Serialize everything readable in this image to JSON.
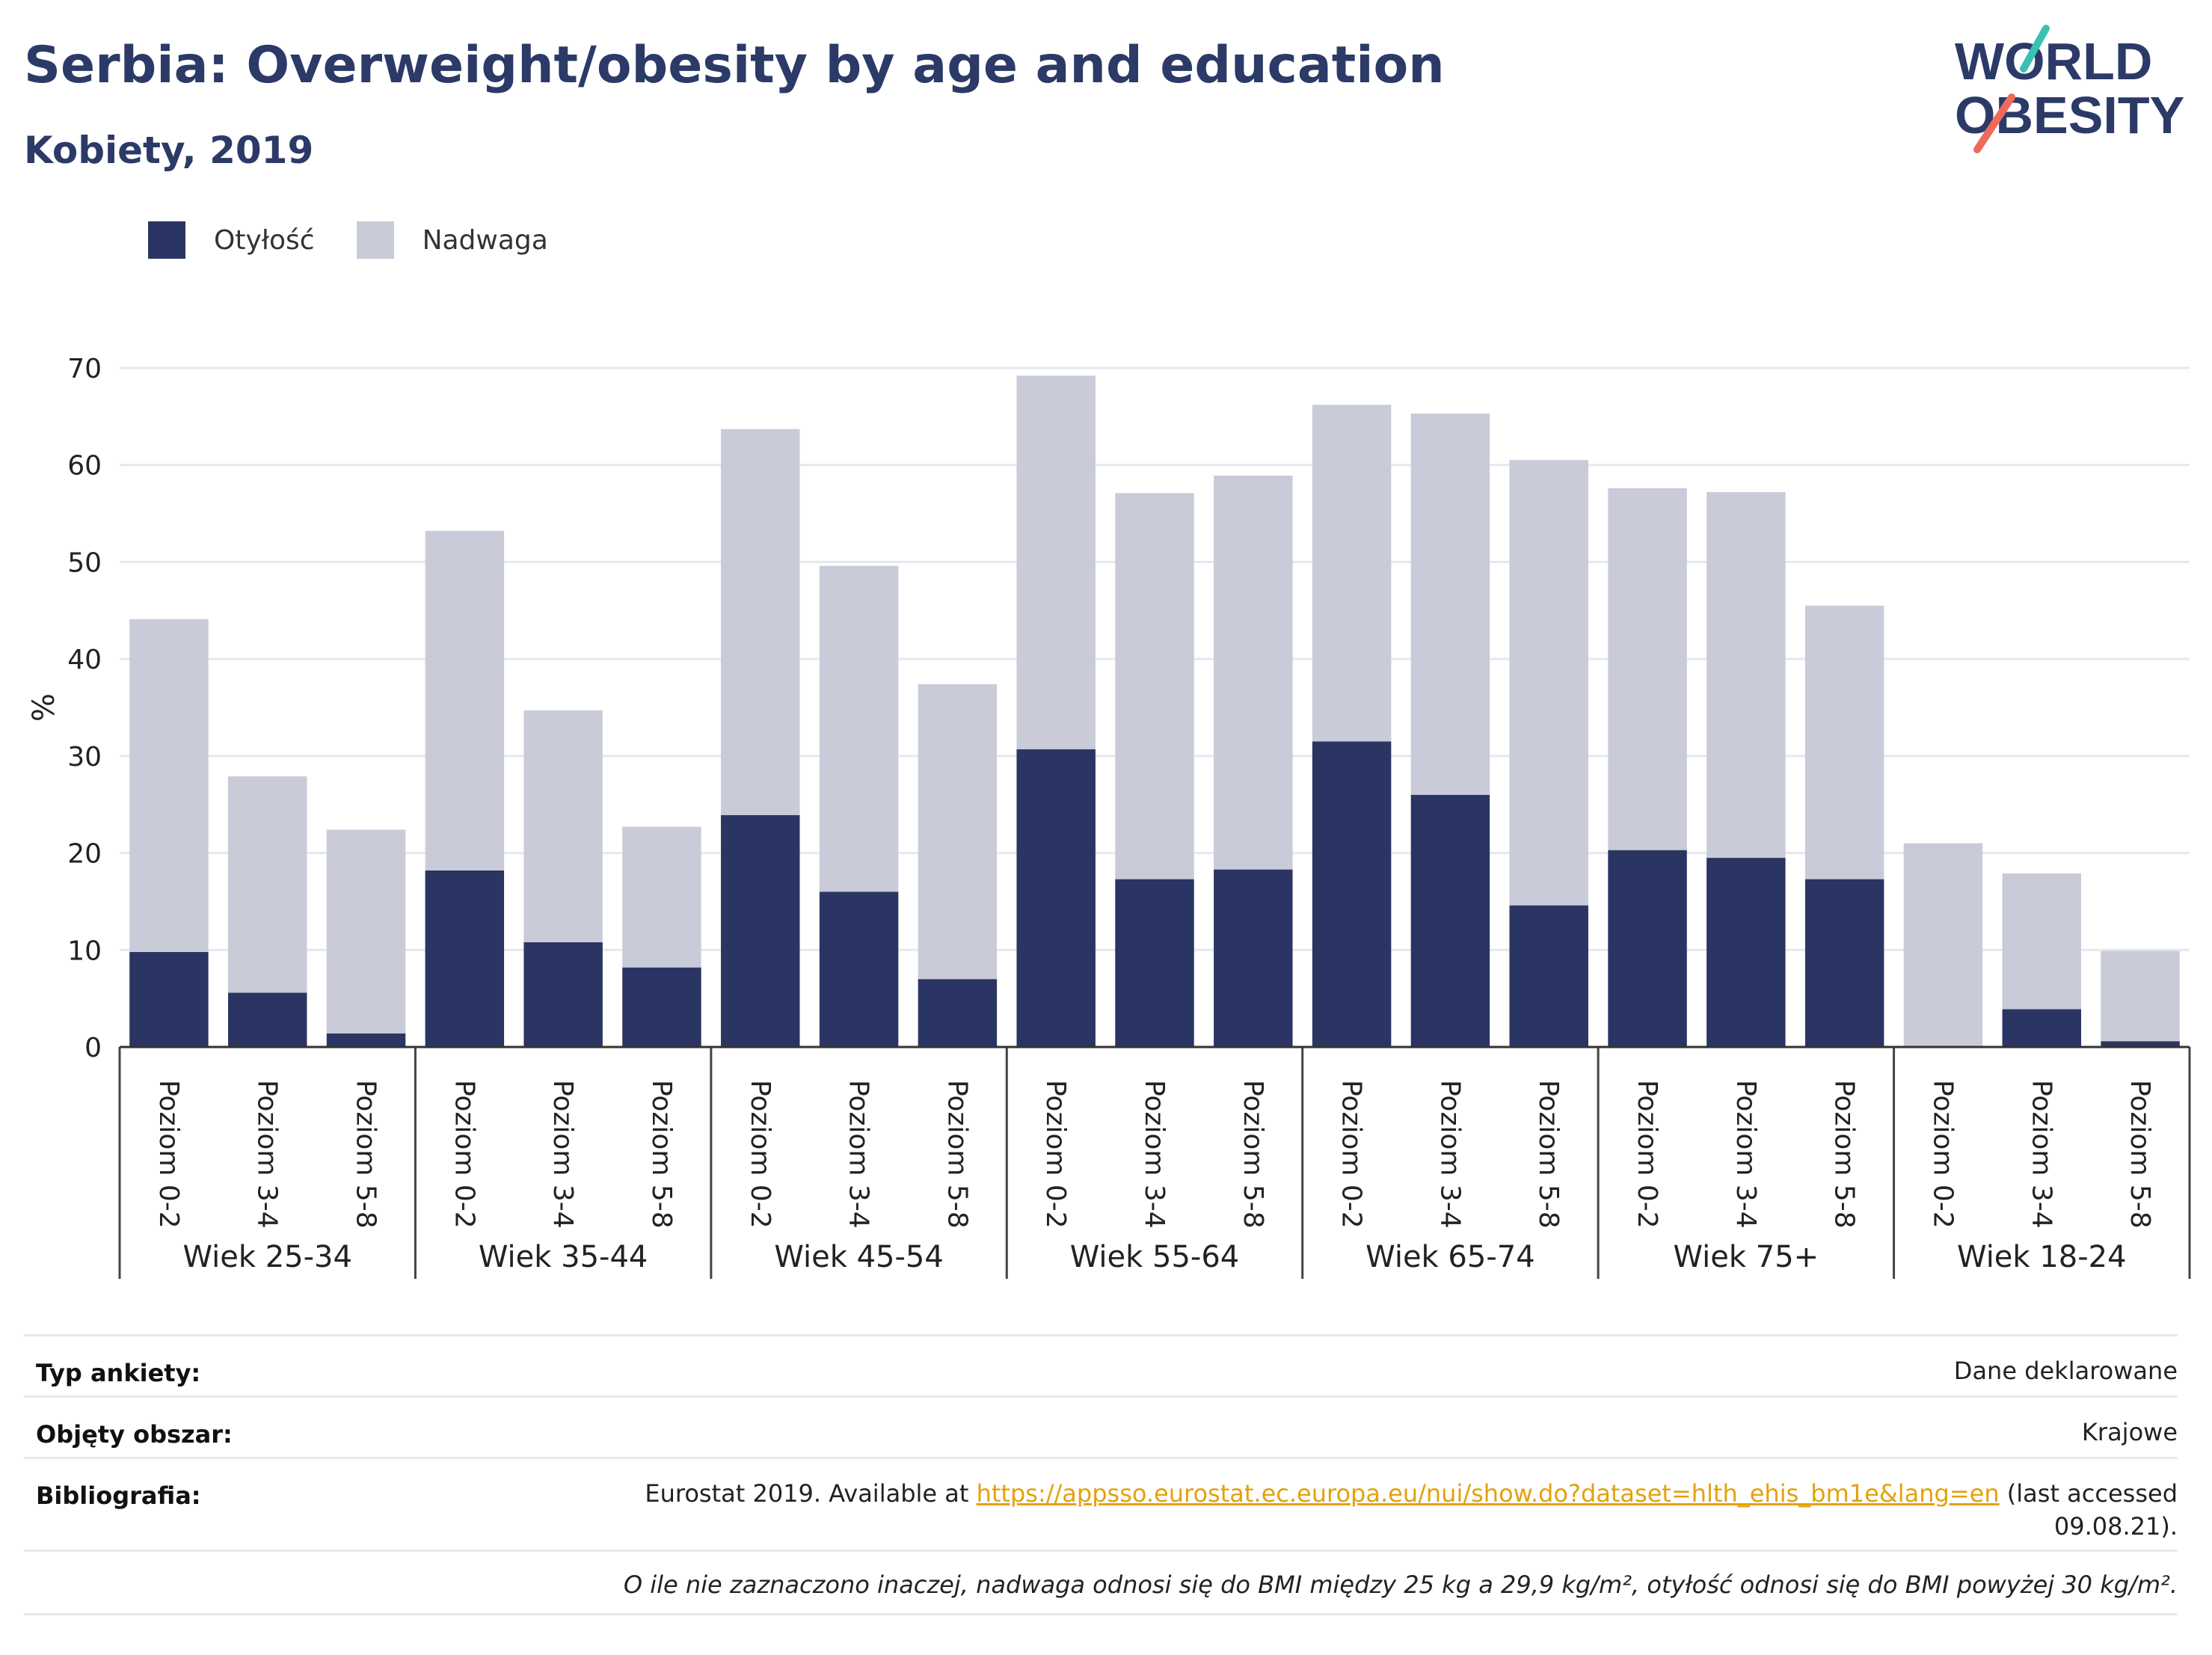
{
  "header": {
    "title": "Serbia: Overweight/obesity by age and education",
    "subtitle": "Kobiety, 2019"
  },
  "logo": {
    "line1": "WORLD",
    "line2": "OBESITY"
  },
  "legend": [
    {
      "label": "Otyłość",
      "color": "#2b3563"
    },
    {
      "label": "Nadwaga",
      "color": "#c9cbd8"
    }
  ],
  "chart_data": {
    "type": "bar",
    "stacked": true,
    "ylabel": "%",
    "ylim": [
      0,
      70
    ],
    "yticks": [
      0,
      10,
      20,
      30,
      40,
      50,
      60,
      70
    ],
    "grid": true,
    "legend_position": "top-left",
    "groups": [
      {
        "name": "Wiek 25-34",
        "categories": [
          "Poziom 0-2",
          "Poziom 3-4",
          "Poziom 5-8"
        ]
      },
      {
        "name": "Wiek 35-44",
        "categories": [
          "Poziom 0-2",
          "Poziom 3-4",
          "Poziom 5-8"
        ]
      },
      {
        "name": "Wiek 45-54",
        "categories": [
          "Poziom 0-2",
          "Poziom 3-4",
          "Poziom 5-8"
        ]
      },
      {
        "name": "Wiek 55-64",
        "categories": [
          "Poziom 0-2",
          "Poziom 3-4",
          "Poziom 5-8"
        ]
      },
      {
        "name": "Wiek 65-74",
        "categories": [
          "Poziom 0-2",
          "Poziom 3-4",
          "Poziom 5-8"
        ]
      },
      {
        "name": "Wiek 75+",
        "categories": [
          "Poziom 0-2",
          "Poziom 3-4",
          "Poziom 5-8"
        ]
      },
      {
        "name": "Wiek 18-24",
        "categories": [
          "Poziom 0-2",
          "Poziom 3-4",
          "Poziom 5-8"
        ]
      }
    ],
    "series": [
      {
        "name": "Otyłość",
        "color": "#2b3563",
        "values": [
          9.8,
          5.6,
          1.4,
          18.2,
          10.8,
          8.2,
          23.9,
          16.0,
          7.0,
          30.7,
          17.3,
          18.3,
          31.5,
          26.0,
          14.6,
          20.3,
          19.5,
          17.3,
          0.0,
          3.9,
          0.6
        ]
      },
      {
        "name": "Nadwaga",
        "color": "#c9cbd8",
        "values": [
          34.3,
          22.3,
          21.0,
          35.0,
          23.9,
          14.5,
          39.8,
          33.6,
          30.4,
          38.5,
          39.8,
          40.6,
          34.7,
          39.3,
          45.9,
          37.3,
          37.7,
          28.2,
          21.0,
          14.0,
          9.3
        ]
      }
    ]
  },
  "metadata": {
    "survey_label": "Typ ankiety:",
    "survey_value": "Dane deklarowane",
    "area_label": "Objęty obszar:",
    "area_value": "Krajowe",
    "biblio_label": "Bibliografia:",
    "biblio_prefix": "Eurostat 2019. Available at ",
    "biblio_link": "https://appsso.eurostat.ec.europa.eu/nui/show.do?dataset=hlth_ehis_bm1e&lang=en",
    "biblio_suffix1": " (last accessed",
    "biblio_suffix2": "09.08.21).",
    "note": "O ile nie zaznaczono inaczej, nadwaga odnosi się do BMI między 25 kg a 29,9 kg/m², otyłość odnosi się do BMI powyżej 30 kg/m²."
  }
}
